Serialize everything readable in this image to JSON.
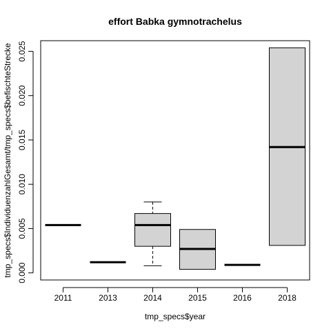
{
  "chart_data": {
    "type": "boxplot",
    "title": "effort Babka gymnotrachelus",
    "xlabel": "tmp_specs$year",
    "ylabel": "tmp_specs$IndividuenzahlGesamt/tmp_specs$befischteStrecke",
    "categories": [
      "2011",
      "2013",
      "2014",
      "2015",
      "2016",
      "2018"
    ],
    "yticks": [
      "0.000",
      "0.005",
      "0.010",
      "0.015",
      "0.020",
      "0.025"
    ],
    "ylim": [
      -0.0008,
      0.0262
    ],
    "box_fill": "#d3d3d3",
    "boxes": [
      {
        "category": "2011",
        "min": 0.0054,
        "q1": 0.0054,
        "median": 0.0054,
        "q3": 0.0054,
        "max": 0.0054
      },
      {
        "category": "2013",
        "min": 0.0012,
        "q1": 0.0012,
        "median": 0.0012,
        "q3": 0.0012,
        "max": 0.0012
      },
      {
        "category": "2014",
        "min": 0.0008,
        "q1": 0.003,
        "median": 0.0054,
        "q3": 0.0067,
        "max": 0.008
      },
      {
        "category": "2015",
        "min": 0.0004,
        "q1": 0.0004,
        "median": 0.0027,
        "q3": 0.0049,
        "max": 0.0049
      },
      {
        "category": "2016",
        "min": 0.0009,
        "q1": 0.0009,
        "median": 0.0009,
        "q3": 0.0009,
        "max": 0.0009
      },
      {
        "category": "2018",
        "min": 0.0031,
        "q1": 0.0031,
        "median": 0.0142,
        "q3": 0.0254,
        "max": 0.0254
      }
    ]
  }
}
